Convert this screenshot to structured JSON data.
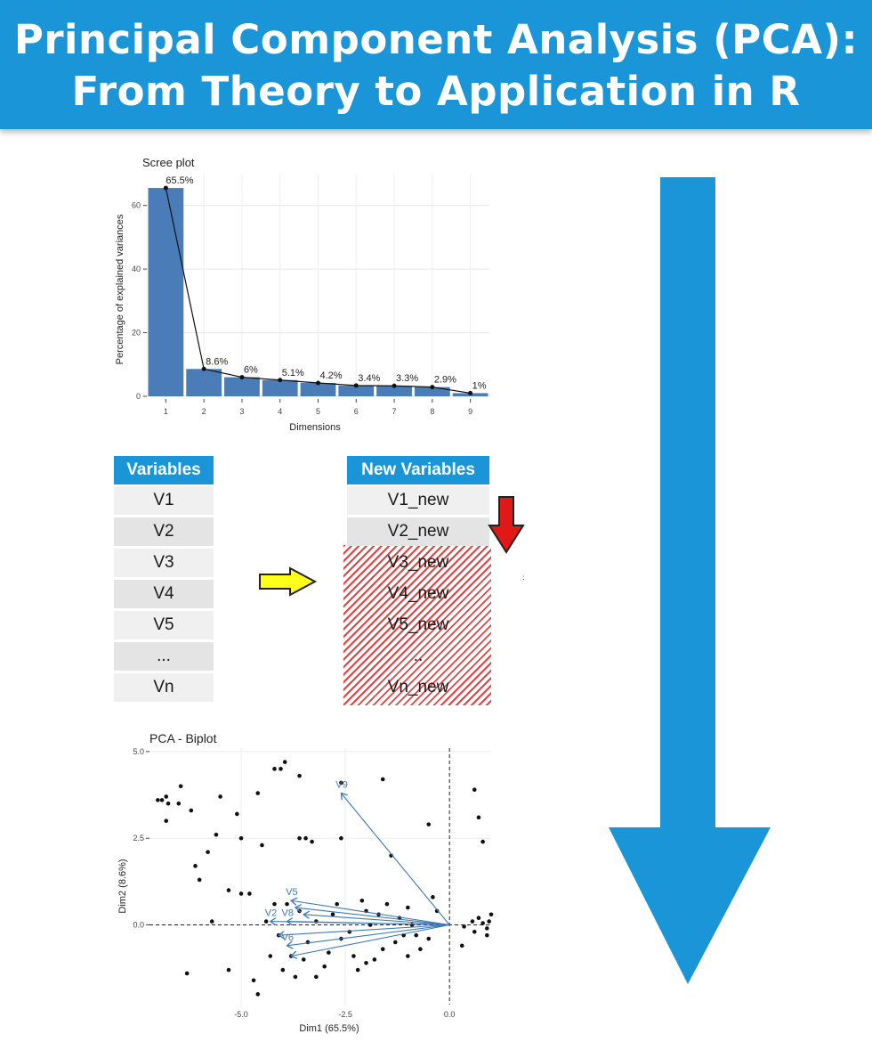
{
  "header": {
    "title_line1": "Principal Component Analysis (PCA):",
    "title_line2": "From Theory to Application in R",
    "bg_color": "#1a96d8"
  },
  "scree": {
    "title": "Scree plot",
    "xlabel": "Dimensions",
    "ylabel": "Percentage of explained variances"
  },
  "variables_table": {
    "header": "Variables",
    "rows": [
      "V1",
      "V2",
      "V3",
      "V4",
      "V5",
      "...",
      "Vn"
    ]
  },
  "new_variables_table": {
    "header": "New Variables",
    "rows": [
      "V1_new",
      "V2_new",
      "V3_new",
      "V4_new",
      "V5_new",
      "..",
      "Vn_new"
    ]
  },
  "biplot": {
    "title": "PCA - Biplot",
    "xlabel": "Dim1 (65.5%)",
    "ylabel": "Dim2 (8.6%)"
  },
  "icons": {
    "transform_arrow": "yellow-right-arrow",
    "discard_arrow": "red-down-arrow",
    "flow_arrow": "blue-down-arrow"
  },
  "chart_data": [
    {
      "type": "bar",
      "title": "Scree plot",
      "xlabel": "Dimensions",
      "ylabel": "Percentage of explained variances",
      "categories": [
        "1",
        "2",
        "3",
        "4",
        "5",
        "6",
        "7",
        "8",
        "9"
      ],
      "values": [
        65.5,
        8.6,
        6.0,
        5.1,
        4.2,
        3.4,
        3.3,
        2.9,
        1.0
      ],
      "labels": [
        "65.5%",
        "8.6%",
        "6%",
        "5.1%",
        "4.2%",
        "3.4%",
        "3.3%",
        "2.9%",
        "1%"
      ],
      "ylim": [
        0,
        70
      ],
      "yticks": [
        0,
        20,
        40,
        60
      ],
      "grid": true,
      "bar_color": "#4a7db8",
      "line_overlay": true
    },
    {
      "type": "scatter",
      "title": "PCA - Biplot",
      "xlabel": "Dim1 (65.5%)",
      "ylabel": "Dim2 (8.6%)",
      "xlim": [
        -7.2,
        1.0
      ],
      "ylim": [
        -2.3,
        5.1
      ],
      "xticks": [
        -5.0,
        -2.5,
        0.0
      ],
      "yticks": [
        0.0,
        2.5,
        5.0
      ],
      "tick_labels_x": [
        "-5.0",
        "-2.5",
        "0.0"
      ],
      "tick_labels_y": [
        "0.0",
        "2.5",
        "5.0"
      ],
      "points": [
        [
          -7.0,
          3.6
        ],
        [
          -6.9,
          3.6
        ],
        [
          -6.8,
          3.7
        ],
        [
          -6.75,
          3.5
        ],
        [
          -6.8,
          3.0
        ],
        [
          -6.5,
          3.5
        ],
        [
          -6.45,
          4.0
        ],
        [
          -6.2,
          3.3
        ],
        [
          -5.5,
          3.7
        ],
        [
          -5.1,
          3.2
        ],
        [
          -4.6,
          3.8
        ],
        [
          -4.2,
          4.5
        ],
        [
          -4.05,
          4.5
        ],
        [
          -3.95,
          4.7
        ],
        [
          -3.6,
          4.3
        ],
        [
          -2.6,
          4.1
        ],
        [
          -1.6,
          4.2
        ],
        [
          -0.5,
          2.9
        ],
        [
          0.6,
          3.9
        ],
        [
          0.7,
          3.1
        ],
        [
          -5.6,
          2.6
        ],
        [
          -5.0,
          2.5
        ],
        [
          -4.5,
          2.3
        ],
        [
          -3.6,
          2.5
        ],
        [
          -3.45,
          2.5
        ],
        [
          -3.3,
          2.4
        ],
        [
          -2.6,
          2.5
        ],
        [
          -1.4,
          2.0
        ],
        [
          0.8,
          2.4
        ],
        [
          -6.1,
          1.7
        ],
        [
          -5.8,
          2.1
        ],
        [
          -6.0,
          1.3
        ],
        [
          -5.3,
          1.0
        ],
        [
          -5.0,
          0.9
        ],
        [
          -4.8,
          0.9
        ],
        [
          -5.7,
          0.1
        ],
        [
          -6.3,
          -1.4
        ],
        [
          -5.3,
          -1.3
        ],
        [
          -4.7,
          -1.6
        ],
        [
          -4.6,
          -2.0
        ],
        [
          -2.2,
          -1.3
        ],
        [
          -1.8,
          -1.0
        ],
        [
          -1.0,
          -0.9
        ],
        [
          0.3,
          -0.6
        ],
        [
          0.9,
          -0.3
        ],
        [
          0.7,
          0.2
        ],
        [
          1.0,
          0.3
        ],
        [
          0.6,
          -0.2
        ],
        [
          0.35,
          -0.05
        ],
        [
          0.55,
          0.1
        ],
        [
          0.8,
          0.05
        ],
        [
          0.9,
          -0.1
        ],
        [
          0.95,
          0.1
        ],
        [
          -2.0,
          -1.1
        ],
        [
          -3.2,
          -1.5
        ],
        [
          -3.7,
          -1.5
        ],
        [
          -4.0,
          -1.3
        ],
        [
          -2.7,
          0.6
        ],
        [
          -2.0,
          0.4
        ],
        [
          -1.5,
          0.6
        ],
        [
          -1.0,
          0.5
        ],
        [
          -0.4,
          0.8
        ],
        [
          -0.8,
          -0.3
        ],
        [
          -1.3,
          -0.5
        ],
        [
          -2.4,
          -0.2
        ],
        [
          -2.9,
          -0.8
        ],
        [
          -3.4,
          -0.5
        ],
        [
          -3.9,
          0.6
        ],
        [
          -4.3,
          -0.9
        ],
        [
          -4.1,
          -0.3
        ],
        [
          -3.6,
          0.4
        ],
        [
          -3.2,
          0.1
        ],
        [
          -2.6,
          -0.4
        ],
        [
          -1.9,
          0.0
        ],
        [
          -1.2,
          0.2
        ],
        [
          -0.7,
          -0.7
        ],
        [
          -0.3,
          0.4
        ],
        [
          -4.4,
          0.1
        ],
        [
          -3.0,
          -1.2
        ],
        [
          -2.3,
          -0.9
        ],
        [
          -1.6,
          -0.7
        ],
        [
          -0.9,
          0.0
        ],
        [
          -3.5,
          -1.0
        ],
        [
          -4.2,
          0.6
        ],
        [
          -3.8,
          -0.9
        ],
        [
          -2.8,
          0.3
        ],
        [
          -2.1,
          0.7
        ],
        [
          -1.7,
          0.3
        ],
        [
          -1.1,
          -0.3
        ],
        [
          -0.5,
          -0.4
        ]
      ],
      "loadings": [
        {
          "name": "V9",
          "x": -2.6,
          "y": 3.8
        },
        {
          "name": "V5",
          "x": -3.8,
          "y": 0.7
        },
        {
          "name": "V2",
          "x": -4.3,
          "y": 0.1
        },
        {
          "name": "V8",
          "x": -3.9,
          "y": 0.1
        },
        {
          "name": "V6",
          "x": -3.9,
          "y": -0.6
        },
        {
          "name": "",
          "x": -3.7,
          "y": 0.5
        },
        {
          "name": "",
          "x": -3.5,
          "y": 0.3
        },
        {
          "name": "",
          "x": -4.1,
          "y": -0.3
        },
        {
          "name": "",
          "x": -3.8,
          "y": -0.9
        }
      ],
      "arrow_color": "#3d7ab8",
      "reference_lines": {
        "x": 0,
        "y": 0,
        "style": "dashed"
      },
      "grid": true
    }
  ]
}
